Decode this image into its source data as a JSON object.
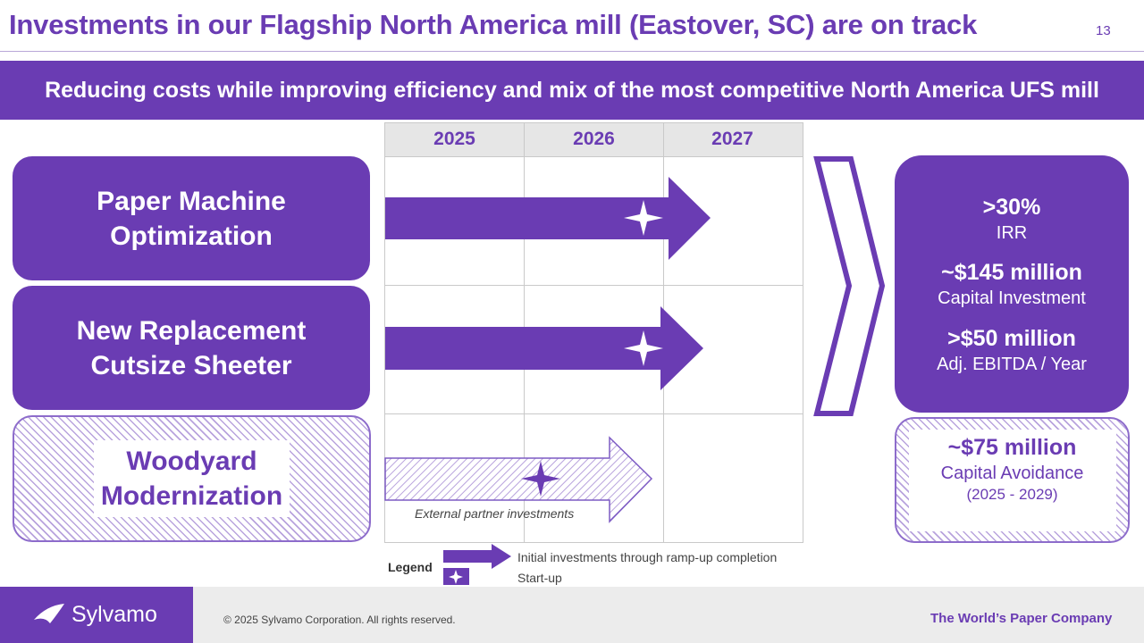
{
  "header": {
    "title": "Investments in our Flagship North America mill (Eastover, SC) are on track",
    "page_number": "13"
  },
  "banner": {
    "text": "Reducing costs while improving efficiency and mix of the most competitive North America UFS mill"
  },
  "timeline": {
    "years": [
      "2025",
      "2026",
      "2027"
    ]
  },
  "projects": [
    {
      "line1": "Paper Machine",
      "line2": "Optimization"
    },
    {
      "line1": "New Replacement",
      "line2": "Cutsize Sheeter"
    },
    {
      "line1": "Woodyard",
      "line2": "Modernization"
    }
  ],
  "external_note": "External partner investments",
  "legend": {
    "title": "Legend",
    "arrow_label": "Initial investments through ramp-up completion",
    "star_label": "Start-up"
  },
  "results": {
    "irr_value": ">30%",
    "irr_label": "IRR",
    "capex_value": "~$145 million",
    "capex_label": "Capital Investment",
    "ebitda_value": ">$50 million",
    "ebitda_label": "Adj. EBITDA / Year",
    "avoid_value": "~$75 million",
    "avoid_label": "Capital Avoidance",
    "avoid_period": "(2025 - 2029)"
  },
  "footer": {
    "brand": "Sylvamo",
    "copyright": "© 2025 Sylvamo Corporation. All rights reserved.",
    "tagline": "The World’s Paper Company"
  },
  "colors": {
    "brand_purple": "#6a3cb3",
    "hatch_light": "#b8a3dd"
  },
  "icons": [
    "sylvamo-logo-icon",
    "start-up-star-icon",
    "chevron-right-icon",
    "investment-arrow-icon"
  ]
}
